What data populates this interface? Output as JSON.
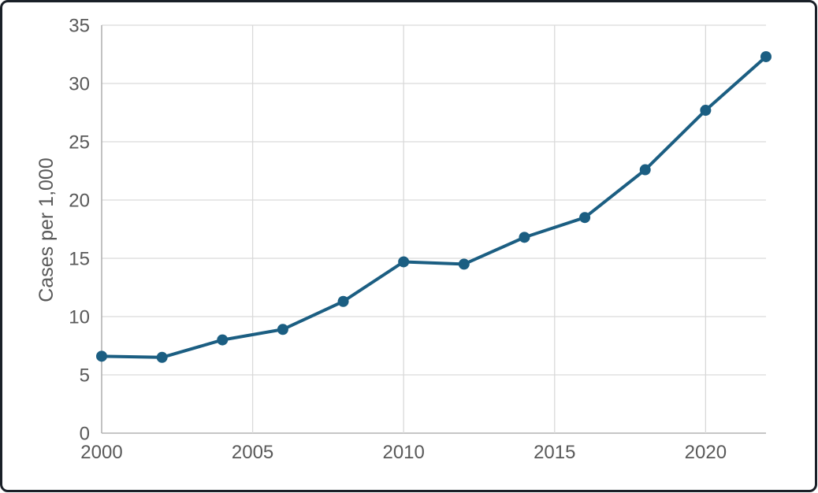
{
  "chart_data": {
    "type": "line",
    "title": "",
    "xlabel": "",
    "ylabel": "Cases per 1,000",
    "x": [
      2000,
      2002,
      2004,
      2006,
      2008,
      2010,
      2012,
      2014,
      2016,
      2018,
      2020,
      2022
    ],
    "series": [
      {
        "name": "Cases per 1,000",
        "values": [
          6.6,
          6.5,
          8.0,
          8.9,
          11.3,
          14.7,
          14.5,
          16.8,
          18.5,
          22.6,
          27.7,
          32.3
        ]
      }
    ],
    "ylim": [
      0,
      35
    ],
    "xlim": [
      2000,
      2022
    ],
    "y_ticks": [
      0,
      5,
      10,
      15,
      20,
      25,
      30,
      35
    ],
    "x_ticks": [
      2000,
      2005,
      2010,
      2015,
      2020
    ],
    "grid": "both",
    "legend_position": "none",
    "marker": "circle"
  },
  "colors": {
    "line": "#1b5e82",
    "marker": "#1b5e82",
    "grid": "#d9d9d9",
    "axis": "#b3b3b3",
    "label": "#595959",
    "background": "#ffffff",
    "card_border": "#1a2028"
  }
}
